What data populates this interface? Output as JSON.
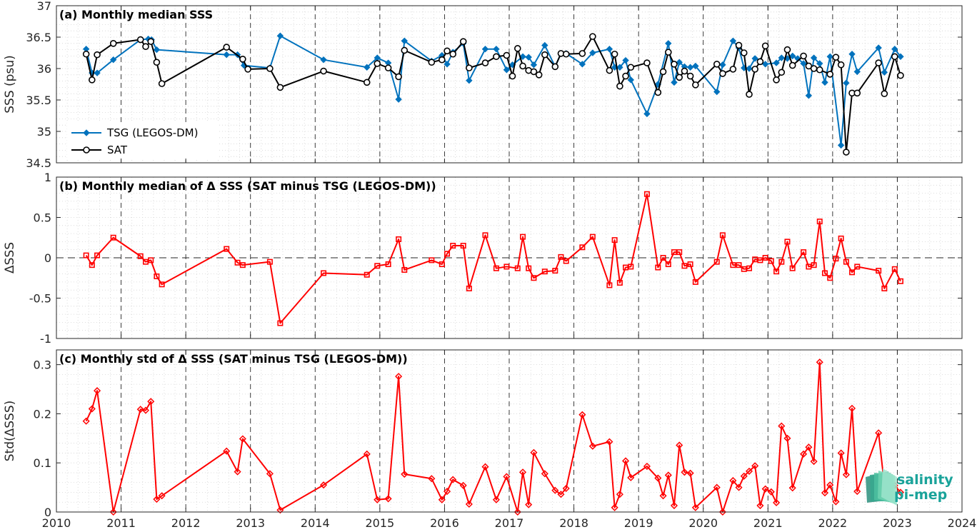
{
  "chart_data": [
    {
      "type": "line",
      "title": "(a) Monthly median SSS",
      "ylabel": "SSS (psu)",
      "xlim": [
        2010,
        2024
      ],
      "ylim": [
        34.5,
        37
      ],
      "yticks": [
        "34.5",
        "35",
        "35.5",
        "36",
        "36.5",
        "37"
      ],
      "legend_position": "lower-left",
      "series": [
        {
          "name": "TSG (LEGOS-DM)",
          "color": "#0072BD",
          "marker": "diamond",
          "x": [
            2010.46,
            2010.55,
            2010.63,
            2010.88,
            2011.3,
            2011.42,
            2011.47,
            2011.55,
            2012.63,
            2012.8,
            2012.9,
            2013.3,
            2013.46,
            2014.13,
            2014.8,
            2014.96,
            2015.13,
            2015.29,
            2015.38,
            2015.8,
            2015.96,
            2016.04,
            2016.13,
            2016.29,
            2016.38,
            2016.63,
            2016.8,
            2016.96,
            2017.05,
            2017.21,
            2017.3,
            2017.38,
            2017.55,
            2017.71,
            2017.8,
            2017.88,
            2018.13,
            2018.29,
            2018.55,
            2018.63,
            2018.71,
            2018.8,
            2018.88,
            2019.13,
            2019.3,
            2019.46,
            2019.55,
            2019.63,
            2019.71,
            2019.8,
            2019.88,
            2020.21,
            2020.3,
            2020.46,
            2020.55,
            2020.63,
            2020.71,
            2020.8,
            2020.88,
            2020.96,
            2021.13,
            2021.21,
            2021.3,
            2021.38,
            2021.46,
            2021.55,
            2021.63,
            2021.71,
            2021.8,
            2021.88,
            2021.96,
            2022.13,
            2022.21,
            2022.3,
            2022.38,
            2022.71,
            2022.8,
            2022.96,
            2023.05
          ],
          "values": [
            36.31,
            35.93,
            35.93,
            36.14,
            36.46,
            36.47,
            36.46,
            36.3,
            36.22,
            36.22,
            36.05,
            36.01,
            36.52,
            36.14,
            36.02,
            36.17,
            36.09,
            35.51,
            36.44,
            36.12,
            36.21,
            36.07,
            36.26,
            36.4,
            35.81,
            36.31,
            36.31,
            35.98,
            36.06,
            36.19,
            36.18,
            36.06,
            36.37,
            36.03,
            36.24,
            36.24,
            36.07,
            36.25,
            36.31,
            36.02,
            36.02,
            36.13,
            35.82,
            35.28,
            35.75,
            36.4,
            35.78,
            36.1,
            36.03,
            36.02,
            36.04,
            35.63,
            36.06,
            36.44,
            36.33,
            36.01,
            36.0,
            36.16,
            36.12,
            36.07,
            36.09,
            36.17,
            36.16,
            36.2,
            36.16,
            36.08,
            35.57,
            36.17,
            36.08,
            35.78,
            36.19,
            34.78,
            35.77,
            36.23,
            35.95,
            36.33,
            35.94,
            36.31,
            36.19
          ]
        },
        {
          "name": "SAT",
          "color": "#000000",
          "marker": "circle",
          "x": [
            2010.46,
            2010.55,
            2010.63,
            2010.88,
            2011.3,
            2011.38,
            2011.46,
            2011.55,
            2011.63,
            2012.63,
            2012.88,
            2012.96,
            2013.3,
            2013.46,
            2014.13,
            2014.8,
            2014.96,
            2015.13,
            2015.29,
            2015.38,
            2015.8,
            2015.96,
            2016.04,
            2016.13,
            2016.29,
            2016.38,
            2016.63,
            2016.8,
            2016.96,
            2017.05,
            2017.13,
            2017.21,
            2017.3,
            2017.38,
            2017.46,
            2017.55,
            2017.71,
            2017.8,
            2017.88,
            2018.13,
            2018.29,
            2018.55,
            2018.63,
            2018.71,
            2018.8,
            2018.88,
            2019.13,
            2019.3,
            2019.38,
            2019.46,
            2019.55,
            2019.63,
            2019.71,
            2019.8,
            2019.88,
            2020.21,
            2020.3,
            2020.46,
            2020.55,
            2020.63,
            2020.71,
            2020.8,
            2020.88,
            2020.96,
            2021.13,
            2021.21,
            2021.3,
            2021.38,
            2021.55,
            2021.63,
            2021.71,
            2021.8,
            2021.96,
            2022.05,
            2022.13,
            2022.21,
            2022.3,
            2022.38,
            2022.71,
            2022.8,
            2022.96,
            2023.05
          ],
          "values": [
            36.23,
            35.82,
            36.22,
            36.4,
            36.46,
            36.35,
            36.43,
            36.1,
            35.76,
            36.34,
            36.15,
            35.99,
            36.0,
            35.7,
            35.96,
            35.78,
            36.08,
            36.01,
            35.87,
            36.29,
            36.1,
            36.14,
            36.28,
            36.23,
            36.43,
            36.01,
            36.09,
            36.19,
            36.21,
            35.88,
            36.32,
            36.04,
            35.97,
            35.95,
            35.9,
            36.22,
            36.03,
            36.24,
            36.23,
            36.24,
            36.51,
            35.97,
            36.23,
            35.72,
            35.88,
            36.02,
            36.09,
            35.62,
            35.95,
            36.26,
            36.07,
            35.86,
            35.96,
            35.88,
            35.74,
            36.07,
            35.92,
            35.99,
            36.37,
            36.25,
            35.59,
            35.99,
            36.11,
            36.36,
            35.82,
            35.94,
            36.3,
            36.05,
            36.2,
            36.04,
            36.0,
            35.98,
            35.91,
            36.18,
            36.06,
            34.67,
            35.61,
            35.61,
            36.09,
            35.6,
            36.19,
            35.89
          ]
        }
      ]
    },
    {
      "type": "line",
      "title": "(b) Monthly median of Δ SSS (SAT minus TSG (LEGOS-DM))",
      "ylabel": "ΔSSS",
      "xlim": [
        2010,
        2024
      ],
      "ylim": [
        -1,
        1
      ],
      "yticks": [
        "-1",
        "-0.5",
        "0",
        "0.5",
        "1"
      ],
      "zero_line": "dashed",
      "series": [
        {
          "color": "#FF0000",
          "marker": "square",
          "x": [
            2010.46,
            2010.55,
            2010.63,
            2010.88,
            2011.3,
            2011.38,
            2011.46,
            2011.55,
            2011.63,
            2012.63,
            2012.8,
            2012.88,
            2013.3,
            2013.46,
            2014.13,
            2014.8,
            2014.96,
            2015.13,
            2015.29,
            2015.38,
            2015.8,
            2015.96,
            2016.04,
            2016.13,
            2016.29,
            2016.38,
            2016.63,
            2016.8,
            2016.96,
            2017.13,
            2017.21,
            2017.3,
            2017.38,
            2017.55,
            2017.71,
            2017.8,
            2017.88,
            2018.13,
            2018.29,
            2018.55,
            2018.63,
            2018.71,
            2018.8,
            2018.88,
            2019.13,
            2019.3,
            2019.38,
            2019.46,
            2019.55,
            2019.63,
            2019.71,
            2019.8,
            2019.88,
            2020.21,
            2020.3,
            2020.46,
            2020.55,
            2020.63,
            2020.71,
            2020.8,
            2020.88,
            2020.96,
            2021.05,
            2021.13,
            2021.21,
            2021.3,
            2021.38,
            2021.55,
            2021.63,
            2021.71,
            2021.8,
            2021.88,
            2021.96,
            2022.05,
            2022.13,
            2022.21,
            2022.3,
            2022.38,
            2022.71,
            2022.8,
            2022.96,
            2023.05
          ],
          "values": [
            0.03,
            -0.09,
            0.03,
            0.25,
            0.02,
            -0.05,
            -0.03,
            -0.23,
            -0.33,
            0.11,
            -0.06,
            -0.09,
            -0.05,
            -0.81,
            -0.19,
            -0.21,
            -0.1,
            -0.08,
            0.23,
            -0.15,
            -0.03,
            -0.08,
            0.05,
            0.15,
            0.15,
            -0.38,
            0.28,
            -0.13,
            -0.11,
            -0.13,
            0.26,
            -0.13,
            -0.25,
            -0.17,
            -0.16,
            0.01,
            -0.04,
            0.13,
            0.26,
            -0.34,
            0.22,
            -0.31,
            -0.12,
            -0.11,
            0.79,
            -0.12,
            0.0,
            -0.08,
            0.07,
            0.07,
            -0.1,
            -0.08,
            -0.3,
            -0.05,
            0.28,
            -0.09,
            -0.09,
            -0.14,
            -0.13,
            -0.02,
            -0.03,
            0.0,
            -0.04,
            -0.17,
            -0.05,
            0.2,
            -0.13,
            0.07,
            -0.11,
            -0.09,
            0.45,
            -0.19,
            -0.25,
            -0.01,
            0.24,
            -0.05,
            -0.18,
            -0.11,
            -0.16,
            -0.38,
            -0.14,
            -0.29
          ]
        }
      ]
    },
    {
      "type": "line",
      "title": "(c) Monthly std of Δ SSS (SAT minus TSG (LEGOS-DM))",
      "ylabel": "Std(ΔSSS)",
      "xlim": [
        2010,
        2024
      ],
      "ylim": [
        0,
        0.33
      ],
      "yticks": [
        "0",
        "0.1",
        "0.2",
        "0.3"
      ],
      "xticks": [
        "2010",
        "2011",
        "2012",
        "2013",
        "2014",
        "2015",
        "2016",
        "2017",
        "2018",
        "2019",
        "2020",
        "2021",
        "2022",
        "2023",
        "2024"
      ],
      "series": [
        {
          "color": "#FF0000",
          "marker": "diamond",
          "x": [
            2010.46,
            2010.55,
            2010.63,
            2010.88,
            2011.3,
            2011.38,
            2011.46,
            2011.55,
            2011.63,
            2012.63,
            2012.8,
            2012.88,
            2013.3,
            2013.46,
            2014.13,
            2014.8,
            2014.96,
            2015.13,
            2015.29,
            2015.38,
            2015.8,
            2015.96,
            2016.04,
            2016.13,
            2016.29,
            2016.38,
            2016.63,
            2016.8,
            2016.96,
            2017.13,
            2017.21,
            2017.3,
            2017.38,
            2017.55,
            2017.71,
            2017.8,
            2017.88,
            2018.13,
            2018.29,
            2018.55,
            2018.63,
            2018.71,
            2018.8,
            2018.88,
            2019.13,
            2019.3,
            2019.38,
            2019.46,
            2019.55,
            2019.63,
            2019.71,
            2019.8,
            2019.88,
            2020.21,
            2020.3,
            2020.46,
            2020.55,
            2020.63,
            2020.71,
            2020.8,
            2020.88,
            2020.96,
            2021.05,
            2021.13,
            2021.21,
            2021.3,
            2021.38,
            2021.55,
            2021.63,
            2021.71,
            2021.8,
            2021.88,
            2021.96,
            2022.05,
            2022.13,
            2022.21,
            2022.3,
            2022.38,
            2022.71,
            2022.8,
            2022.96,
            2023.05
          ],
          "values": [
            0.185,
            0.21,
            0.247,
            0.0,
            0.209,
            0.207,
            0.225,
            0.026,
            0.033,
            0.124,
            0.082,
            0.149,
            0.078,
            0.004,
            0.055,
            0.118,
            0.025,
            0.027,
            0.276,
            0.077,
            0.068,
            0.025,
            0.042,
            0.066,
            0.054,
            0.016,
            0.092,
            0.025,
            0.072,
            0.0,
            0.081,
            0.015,
            0.121,
            0.078,
            0.044,
            0.036,
            0.048,
            0.198,
            0.134,
            0.143,
            0.009,
            0.036,
            0.104,
            0.07,
            0.093,
            0.069,
            0.033,
            0.075,
            0.013,
            0.136,
            0.081,
            0.079,
            0.009,
            0.05,
            0.0,
            0.064,
            0.05,
            0.073,
            0.083,
            0.094,
            0.013,
            0.047,
            0.041,
            0.019,
            0.175,
            0.15,
            0.049,
            0.118,
            0.132,
            0.103,
            0.305,
            0.039,
            0.055,
            0.021,
            0.12,
            0.076,
            0.211,
            0.042,
            0.161,
            0.055,
            0.054,
            0.04
          ]
        }
      ]
    }
  ],
  "logo": {
    "line1": "salinity",
    "line2": "pi-mep"
  }
}
